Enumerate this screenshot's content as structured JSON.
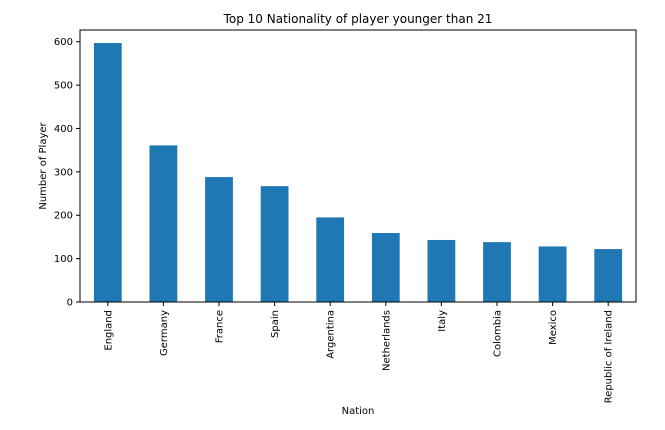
{
  "chart_data": {
    "type": "bar",
    "title": "Top 10 Nationality of player younger than 21",
    "xlabel": "Nation",
    "ylabel": "Number of Player",
    "categories": [
      "England",
      "Germany",
      "France",
      "Spain",
      "Argentina",
      "Netherlands",
      "Italy",
      "Colombia",
      "Mexico",
      "Republic of Ireland"
    ],
    "values": [
      597,
      361,
      288,
      267,
      195,
      159,
      143,
      138,
      128,
      122
    ],
    "ylim": [
      0,
      627
    ],
    "yticks": [
      0,
      100,
      200,
      300,
      400,
      500,
      600
    ],
    "grid": false,
    "legend": "none",
    "bar_color": "#1f77b4"
  }
}
